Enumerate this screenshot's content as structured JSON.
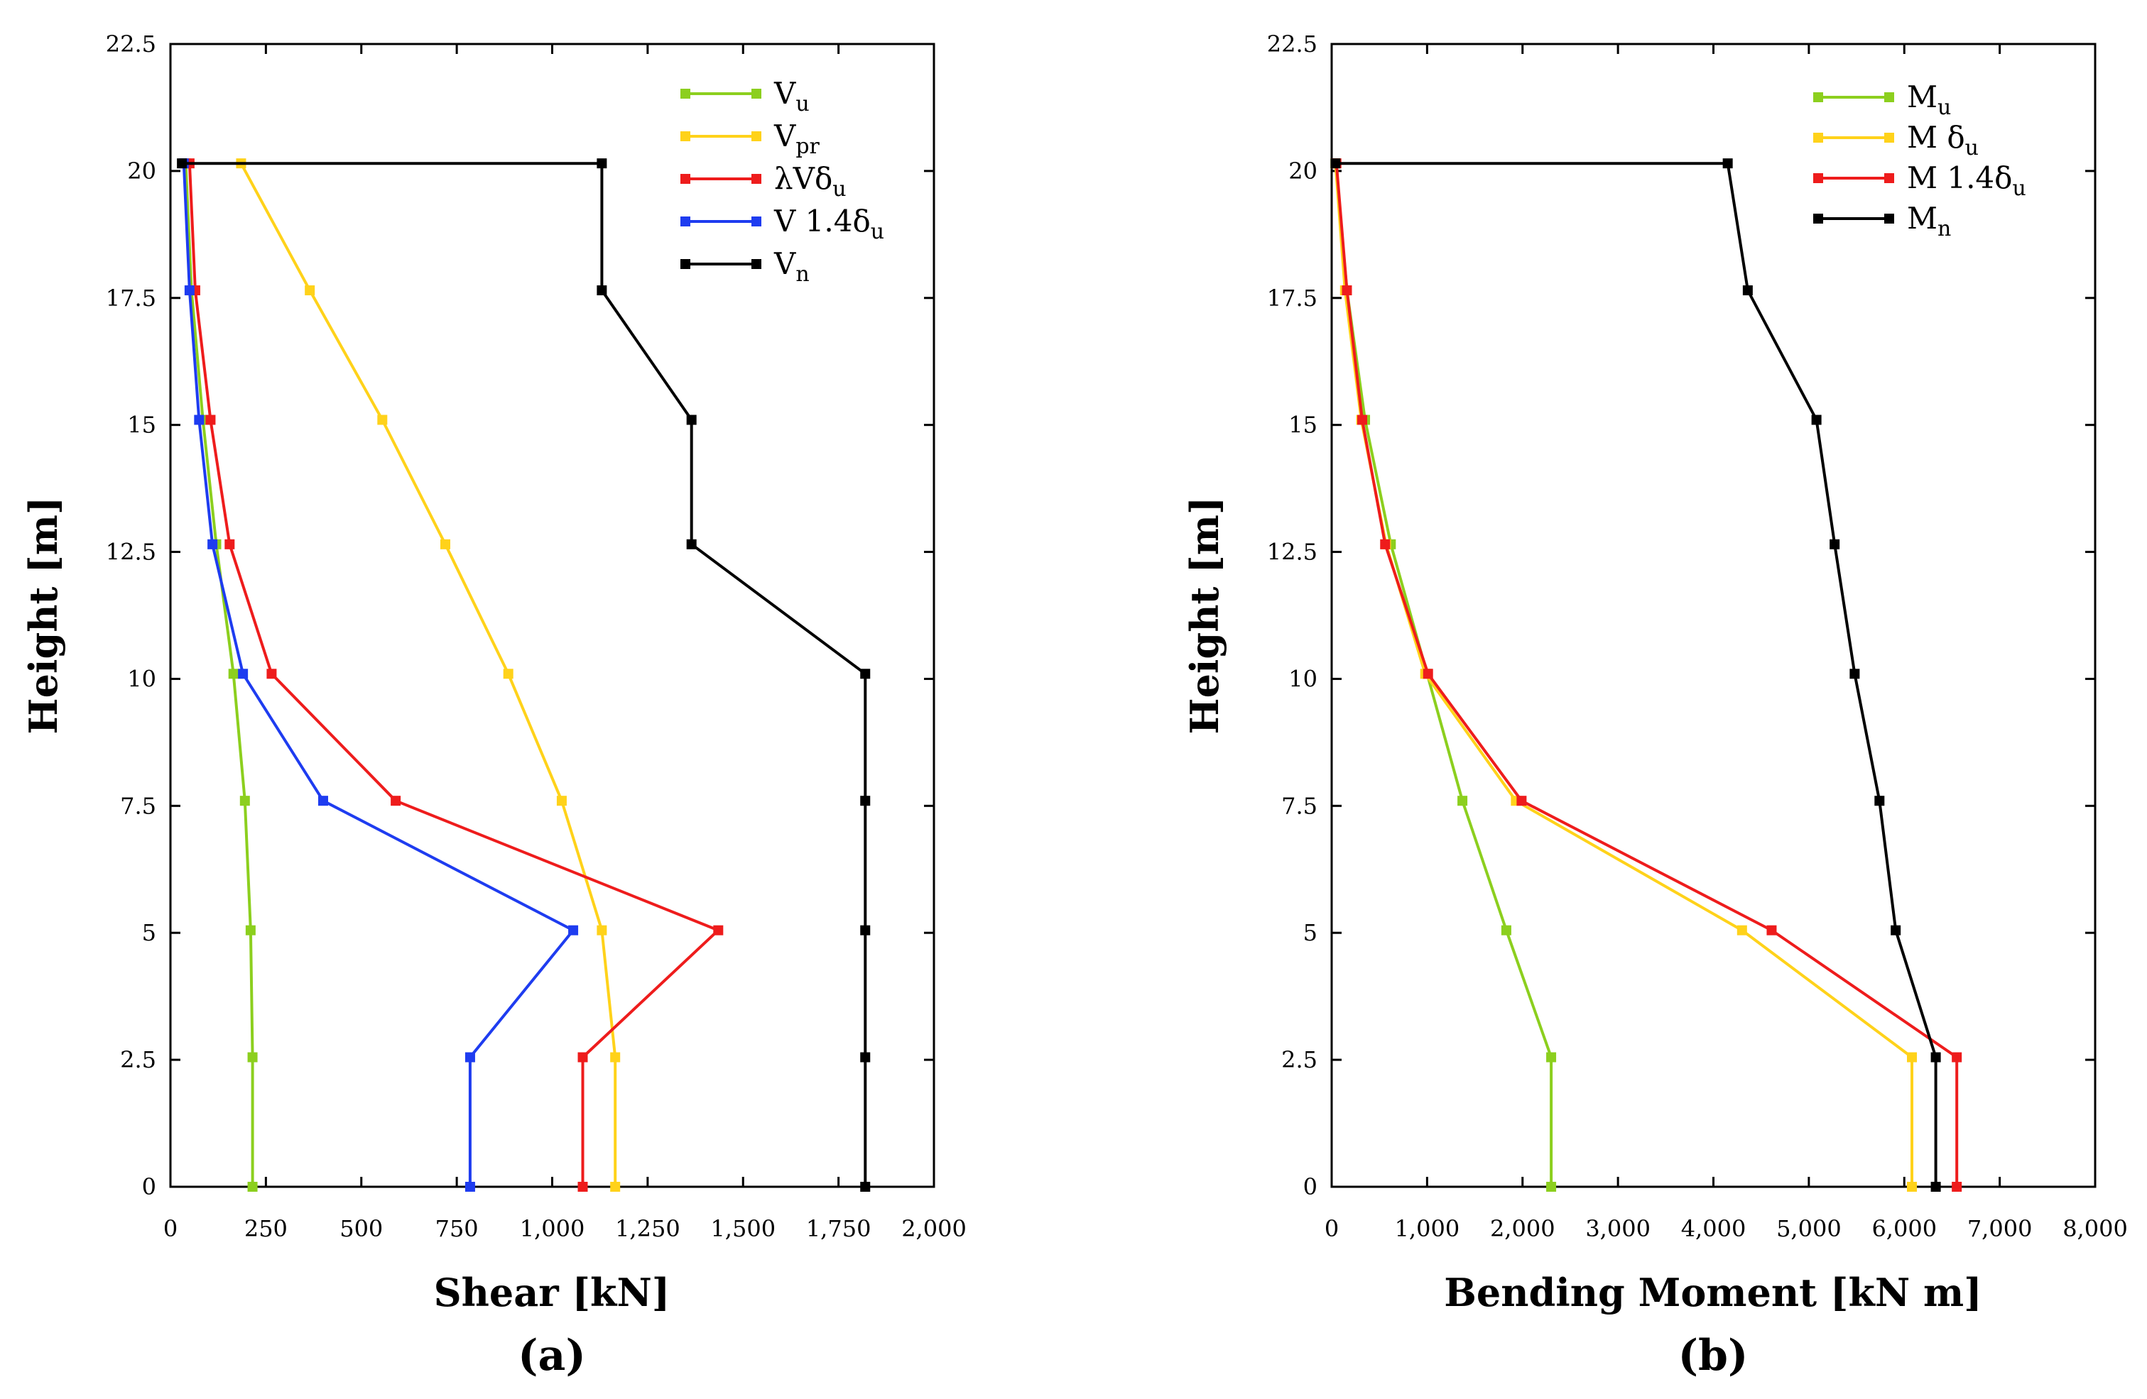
{
  "chart_data": [
    {
      "type": "line",
      "panel_label": "(a)",
      "xlabel": "Shear [kN]",
      "ylabel": "Height [m]",
      "xlim": [
        0,
        2000
      ],
      "ylim": [
        0,
        22.5
      ],
      "xticks": [
        "0",
        "250",
        "500",
        "750",
        "1,000",
        "1,250",
        "1,500",
        "1,750",
        "2,000"
      ],
      "yticks": [
        "0",
        "2.5",
        "5",
        "7.5",
        "10",
        "12.5",
        "15",
        "17.5",
        "20",
        "22.5"
      ],
      "legend_position": "top-right",
      "grid": false,
      "series": [
        {
          "name": "Vu",
          "name_main": "V",
          "name_sub": "u",
          "color": "#8ccf1e",
          "x": [
            215,
            215,
            210,
            195,
            165,
            120,
            85,
            55,
            40
          ],
          "y": [
            0,
            2.55,
            5.05,
            7.6,
            10.1,
            12.65,
            15.1,
            17.65,
            20.15
          ]
        },
        {
          "name": "Vpr",
          "name_main": "V",
          "name_sub": "pr",
          "color": "#ffd21a",
          "x": [
            1165,
            1165,
            1130,
            1025,
            885,
            720,
            555,
            365,
            185
          ],
          "y": [
            0,
            2.55,
            5.05,
            7.6,
            10.1,
            12.65,
            15.1,
            17.65,
            20.15
          ]
        },
        {
          "name": "λVδu",
          "name_main": "λVδ",
          "name_sub": "u",
          "color": "#ee1c1c",
          "x": [
            1080,
            1080,
            1435,
            590,
            265,
            155,
            105,
            65,
            50
          ],
          "y": [
            0,
            2.55,
            5.05,
            7.6,
            10.1,
            12.65,
            15.1,
            17.65,
            20.15
          ]
        },
        {
          "name": "V 1.4δu",
          "name_main": "V 1.4δ",
          "name_sub": "u",
          "color": "#1e3cf0",
          "x": [
            785,
            785,
            1055,
            400,
            190,
            110,
            75,
            50,
            35
          ],
          "y": [
            0,
            2.55,
            5.05,
            7.6,
            10.1,
            12.65,
            15.1,
            17.65,
            20.15
          ]
        },
        {
          "name": "Vn",
          "name_main": "V",
          "name_sub": "n",
          "color": "#000000",
          "x": [
            1820,
            1820,
            1820,
            1820,
            1820,
            1365,
            1365,
            1130,
            1130,
            30
          ],
          "y": [
            0,
            2.55,
            5.05,
            7.6,
            10.1,
            12.65,
            15.1,
            17.65,
            20.15,
            20.15
          ]
        }
      ]
    },
    {
      "type": "line",
      "panel_label": "(b)",
      "xlabel": "Bending Moment [kN m]",
      "ylabel": "Height [m]",
      "xlim": [
        0,
        8000
      ],
      "ylim": [
        0,
        22.5
      ],
      "xticks": [
        "0",
        "1,000",
        "2,000",
        "3,000",
        "4,000",
        "5,000",
        "6,000",
        "7,000",
        "8,000"
      ],
      "yticks": [
        "0",
        "2.5",
        "5",
        "7.5",
        "10",
        "12.5",
        "15",
        "17.5",
        "20",
        "22.5"
      ],
      "legend_position": "top-right",
      "grid": false,
      "series": [
        {
          "name": "Mu",
          "name_main": "M",
          "name_sub": "u",
          "color": "#8ccf1e",
          "x": [
            2300,
            2300,
            1830,
            1370,
            1000,
            620,
            350,
            160,
            40
          ],
          "y": [
            0,
            2.55,
            5.05,
            7.6,
            10.1,
            12.65,
            15.1,
            17.65,
            20.15
          ]
        },
        {
          "name": "M δu",
          "name_main": "M δ",
          "name_sub": "u",
          "color": "#ffd21a",
          "x": [
            6080,
            6080,
            4300,
            1930,
            980,
            570,
            310,
            140,
            40
          ],
          "y": [
            0,
            2.55,
            5.05,
            7.6,
            10.1,
            12.65,
            15.1,
            17.65,
            20.15
          ]
        },
        {
          "name": "M 1.4δu",
          "name_main": "M 1.4δ",
          "name_sub": "u",
          "color": "#ee1c1c",
          "x": [
            6550,
            6550,
            4610,
            1990,
            1010,
            560,
            320,
            160,
            50
          ],
          "y": [
            0,
            2.55,
            5.05,
            7.6,
            10.1,
            12.65,
            15.1,
            17.65,
            20.15
          ]
        },
        {
          "name": "Mn",
          "name_main": "M",
          "name_sub": "n",
          "color": "#000000",
          "x": [
            6330,
            6330,
            5910,
            5740,
            5480,
            5270,
            5080,
            4360,
            4150,
            40
          ],
          "y": [
            0,
            2.55,
            5.05,
            7.6,
            10.1,
            12.65,
            15.1,
            17.65,
            20.15,
            20.15
          ]
        }
      ]
    }
  ]
}
